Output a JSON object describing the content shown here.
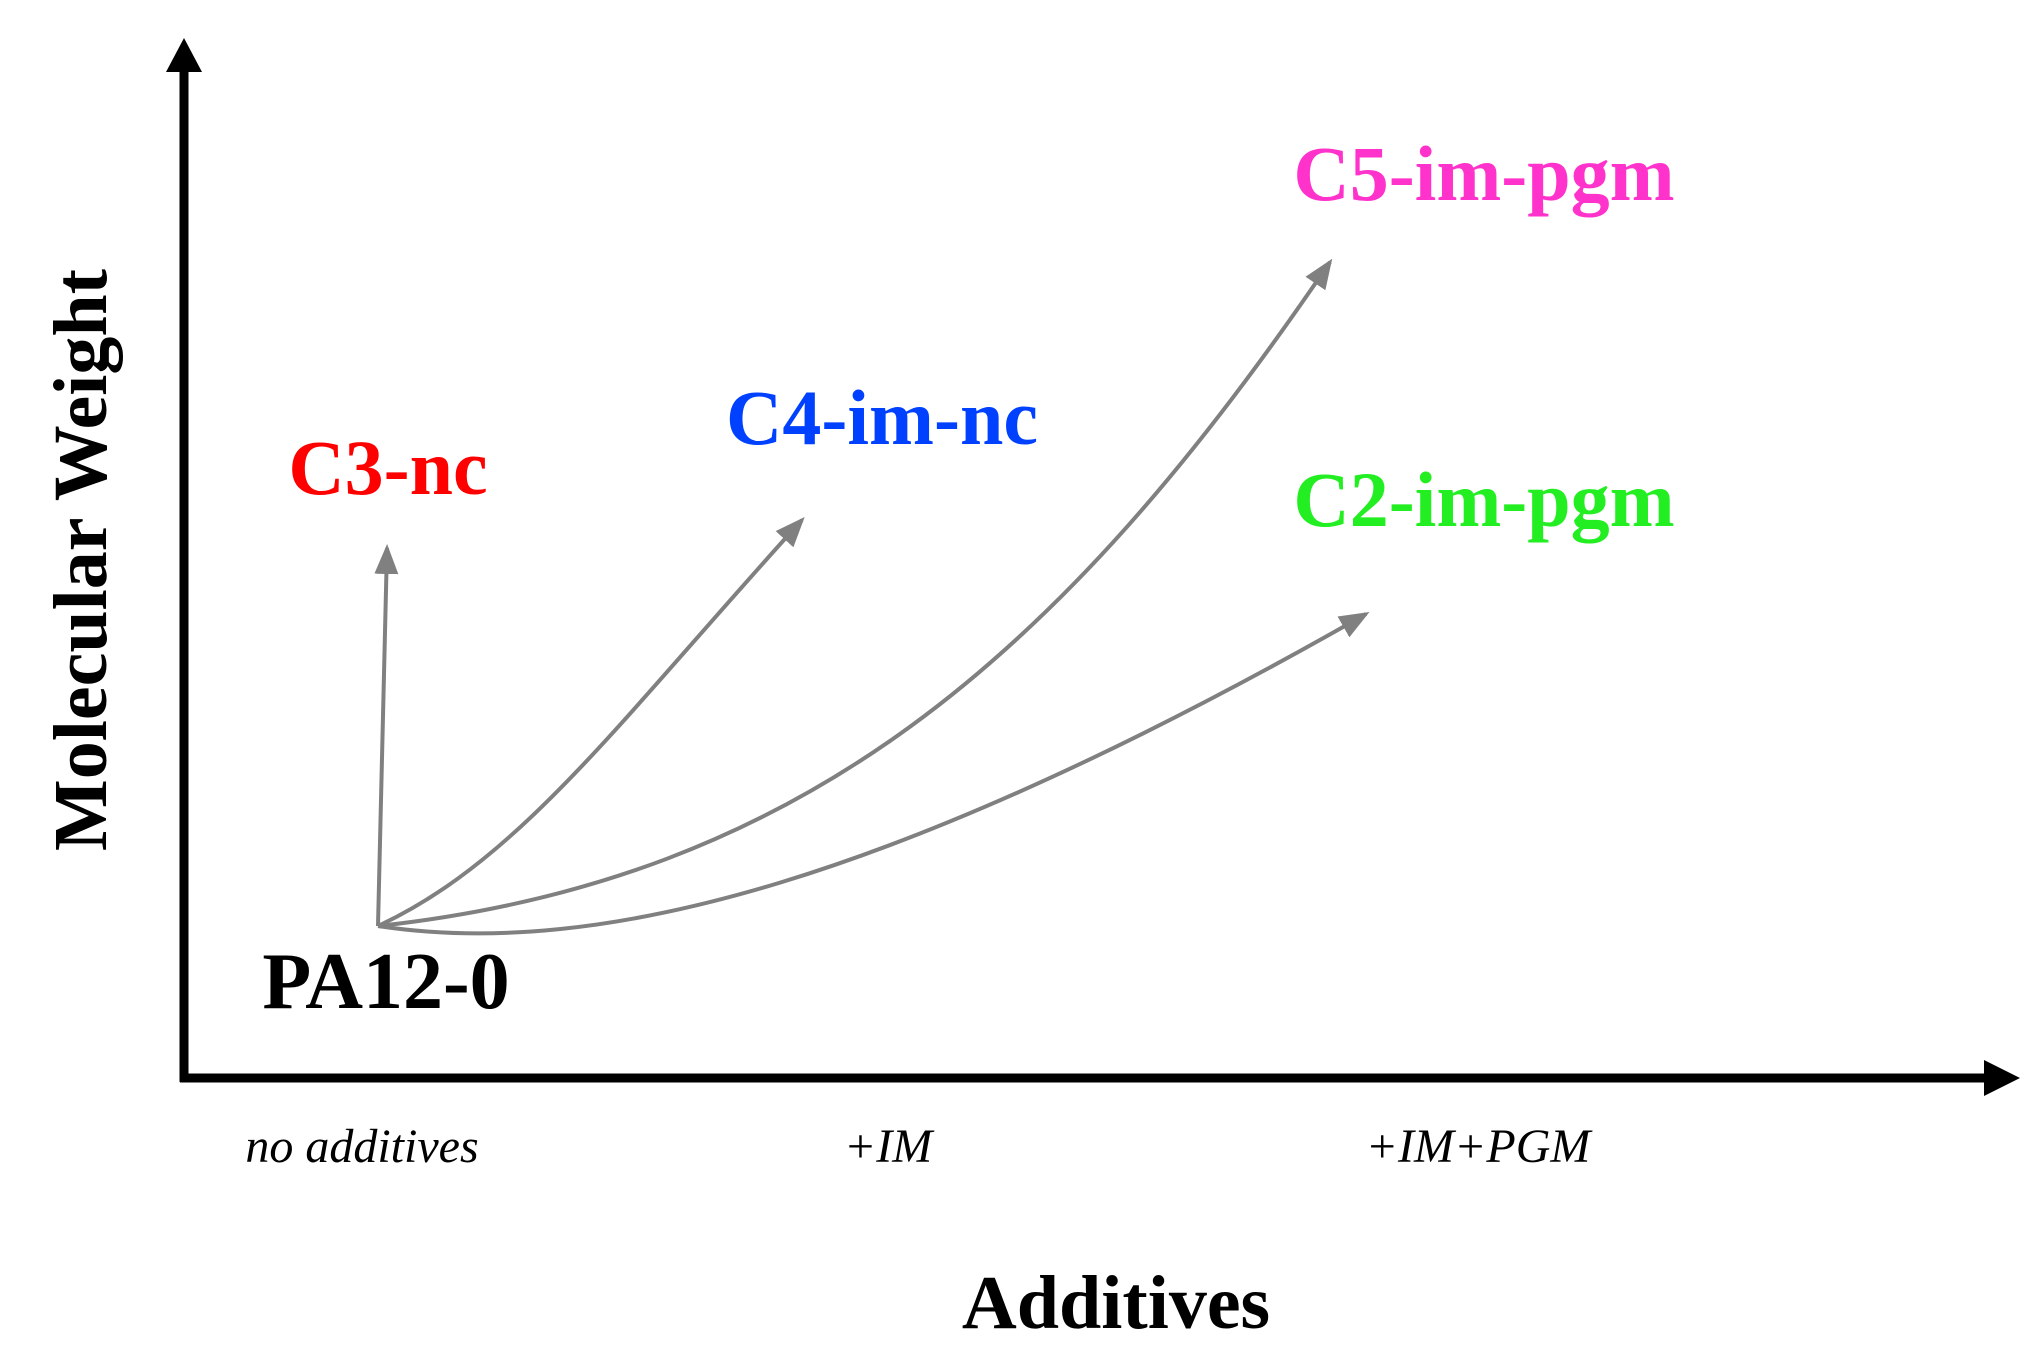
{
  "axes": {
    "y_label": "Molecular Weight",
    "x_label": "Additives",
    "x_categories": [
      "no additives",
      "+IM",
      "+IM+PGM"
    ]
  },
  "origin": {
    "label": "PA12-0",
    "color": "#000000"
  },
  "products": [
    {
      "label": "C3-nc",
      "color": "#ff0000",
      "additive": "no additives"
    },
    {
      "label": "C4-im-nc",
      "color": "#0040ff",
      "additive": "+IM"
    },
    {
      "label": "C5-im-pgm",
      "color": "#ff33cc",
      "additive": "+IM+PGM"
    },
    {
      "label": "C2-im-pgm",
      "color": "#22ee22",
      "additive": "+IM+PGM"
    }
  ],
  "arrow_color": "#808080"
}
